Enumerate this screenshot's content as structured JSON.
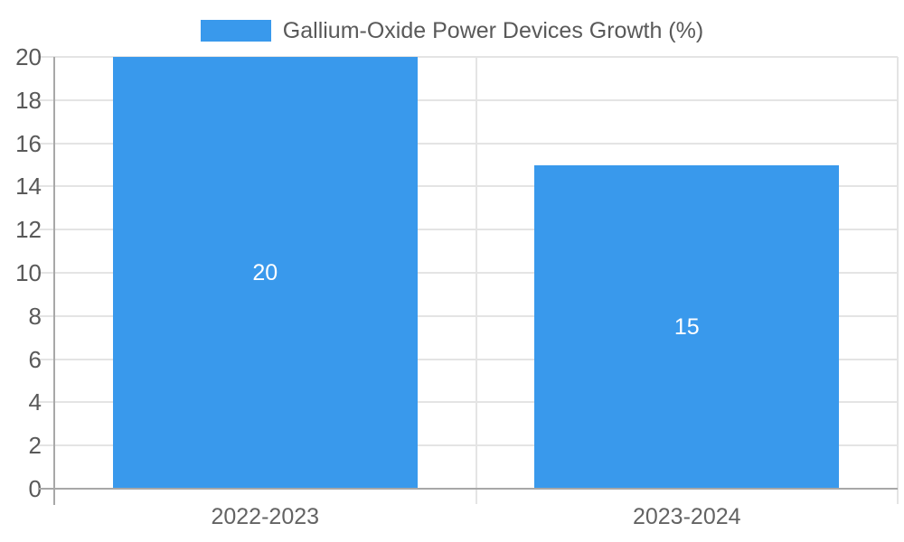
{
  "chart_data": {
    "type": "bar",
    "title": "",
    "legend_label": "Gallium-Oxide Power Devices Growth (%)",
    "categories": [
      "2022-2023",
      "2023-2024"
    ],
    "series": [
      {
        "name": "Gallium-Oxide Power Devices Growth (%)",
        "values": [
          20,
          15
        ]
      }
    ],
    "value_labels": [
      "20",
      "15"
    ],
    "xlabel": "",
    "ylabel": "",
    "ylim": [
      0,
      20
    ],
    "ytick_step": 2,
    "yticks": [
      0,
      2,
      4,
      6,
      8,
      10,
      12,
      14,
      16,
      18,
      20
    ],
    "grid": true,
    "legend_position": "top-center",
    "colors": {
      "bar": "#3999EC",
      "grid": "#E4E4E4",
      "axis": "#A8A8A8",
      "tick_text": "#595959",
      "bar_label_text": "#FFFFFF",
      "background": "#FFFFFF"
    }
  }
}
